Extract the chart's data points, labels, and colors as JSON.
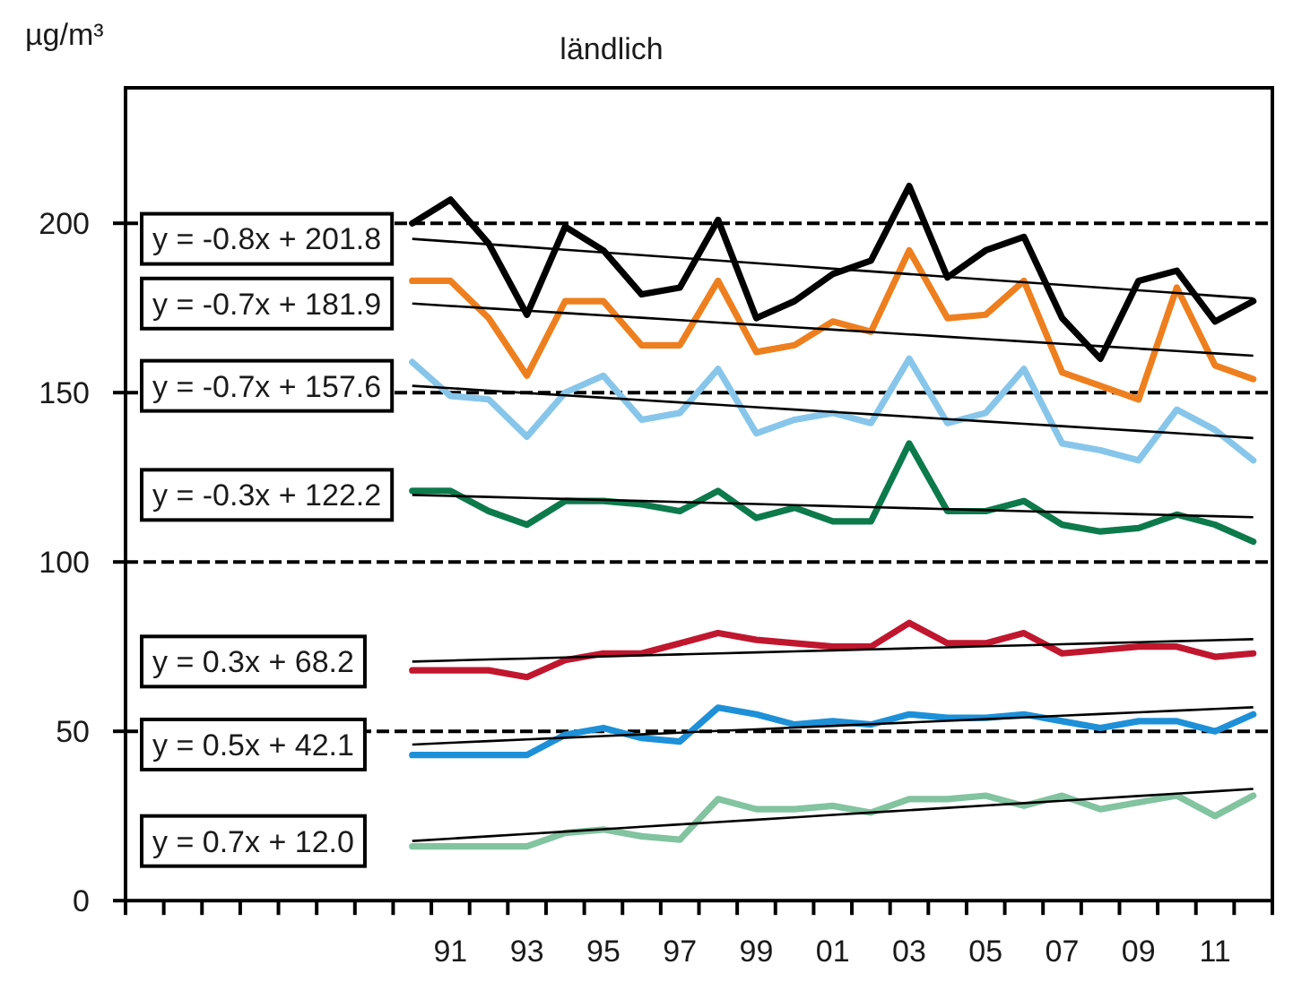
{
  "chart_data": {
    "type": "line",
    "title": "ländlich",
    "ylabel": "µg/m³",
    "categories": [
      null,
      null,
      null,
      null,
      null,
      null,
      null,
      null,
      "91",
      null,
      "93",
      null,
      "95",
      null,
      "97",
      null,
      "99",
      null,
      "01",
      null,
      "03",
      null,
      "05",
      null,
      "07",
      null,
      "09",
      null,
      "11",
      null
    ],
    "ylim": [
      0,
      240
    ],
    "yticks": [
      0,
      50,
      100,
      150,
      200
    ],
    "grid": "y",
    "series": [
      {
        "color": "#000000",
        "values": [
          null,
          null,
          null,
          null,
          null,
          null,
          null,
          200,
          207,
          194,
          173,
          199,
          192,
          179,
          181,
          201,
          172,
          177,
          185,
          189,
          211,
          184,
          192,
          196,
          172,
          160,
          183,
          186,
          171,
          177
        ]
      },
      {
        "color": "#ee7f1f",
        "values": [
          null,
          null,
          null,
          null,
          null,
          null,
          null,
          183,
          183,
          172,
          155,
          177,
          177,
          164,
          164,
          183,
          162,
          164,
          171,
          168,
          192,
          172,
          173,
          183,
          156,
          152,
          148,
          181,
          158,
          154
        ]
      },
      {
        "color": "#87c6ea",
        "values": [
          null,
          null,
          null,
          null,
          null,
          null,
          null,
          159,
          149,
          148,
          137,
          150,
          155,
          142,
          144,
          157,
          138,
          142,
          144,
          141,
          160,
          141,
          144,
          157,
          135,
          133,
          130,
          145,
          139,
          130
        ]
      },
      {
        "color": "#0d7a4c",
        "values": [
          null,
          null,
          null,
          null,
          null,
          null,
          null,
          121,
          121,
          115,
          111,
          118,
          118,
          117,
          115,
          121,
          113,
          116,
          112,
          112,
          135,
          115,
          115,
          118,
          111,
          109,
          110,
          114,
          111,
          106
        ]
      },
      {
        "color": "#c0172e",
        "values": [
          null,
          null,
          null,
          null,
          null,
          null,
          null,
          68,
          68,
          68,
          66,
          71,
          73,
          73,
          76,
          79,
          77,
          76,
          75,
          75,
          82,
          76,
          76,
          79,
          73,
          74,
          75,
          75,
          72,
          73
        ]
      },
      {
        "color": "#1d90d8",
        "values": [
          null,
          null,
          null,
          null,
          null,
          null,
          null,
          43,
          43,
          43,
          43,
          49,
          51,
          48,
          47,
          57,
          55,
          52,
          53,
          52,
          55,
          54,
          54,
          55,
          53,
          51,
          53,
          53,
          50,
          55
        ]
      },
      {
        "color": "#82c3a0",
        "values": [
          null,
          null,
          null,
          null,
          null,
          null,
          null,
          16,
          16,
          16,
          16,
          20,
          21,
          19,
          18,
          30,
          27,
          27,
          28,
          26,
          30,
          30,
          31,
          28,
          31,
          27,
          29,
          31,
          25,
          31
        ]
      },
      {
        "name": "y = -0.8x + 201.8",
        "color": "#000000",
        "values": [
          null,
          null,
          null,
          null,
          null,
          null,
          null,
          195.4,
          194.6,
          193.8,
          193.0,
          192.2,
          191.4,
          190.6,
          189.8,
          189.0,
          188.2,
          187.4,
          186.6,
          185.8,
          185.0,
          184.2,
          183.4,
          182.6,
          181.8,
          181.0,
          180.2,
          179.4,
          178.6,
          177.8
        ]
      },
      {
        "name": "y = -0.7x + 181.9",
        "color": "#000000",
        "values": [
          null,
          null,
          null,
          null,
          null,
          null,
          null,
          176.3,
          175.6,
          174.9,
          174.2,
          173.5,
          172.8,
          172.1,
          171.4,
          170.7,
          170.0,
          169.3,
          168.6,
          167.9,
          167.2,
          166.5,
          165.8,
          165.1,
          164.4,
          163.7,
          163.0,
          162.3,
          161.6,
          160.9
        ]
      },
      {
        "name": "y = -0.7x + 157.6",
        "color": "#000000",
        "values": [
          null,
          null,
          null,
          null,
          null,
          null,
          null,
          152.0,
          151.3,
          150.6,
          149.9,
          149.2,
          148.5,
          147.8,
          147.1,
          146.4,
          145.7,
          145.0,
          144.3,
          143.6,
          142.9,
          142.2,
          141.5,
          140.8,
          140.1,
          139.4,
          138.7,
          138.0,
          137.3,
          136.6
        ]
      },
      {
        "name": "y = -0.3x + 122.2",
        "color": "#000000",
        "values": [
          null,
          null,
          null,
          null,
          null,
          null,
          null,
          119.8,
          119.5,
          119.2,
          118.9,
          118.6,
          118.3,
          118.0,
          117.7,
          117.4,
          117.1,
          116.8,
          116.5,
          116.2,
          115.9,
          115.6,
          115.3,
          115.0,
          114.7,
          114.4,
          114.1,
          113.8,
          113.5,
          113.2
        ]
      },
      {
        "name": "y = 0.3x + 68.2",
        "color": "#000000",
        "values": [
          null,
          null,
          null,
          null,
          null,
          null,
          null,
          70.6,
          70.9,
          71.2,
          71.5,
          71.8,
          72.1,
          72.4,
          72.7,
          73.0,
          73.3,
          73.6,
          73.9,
          74.2,
          74.5,
          74.8,
          75.1,
          75.4,
          75.7,
          76.0,
          76.3,
          76.6,
          76.9,
          77.2
        ]
      },
      {
        "name": "y = 0.5x + 42.1",
        "color": "#000000",
        "values": [
          null,
          null,
          null,
          null,
          null,
          null,
          null,
          46.1,
          46.6,
          47.1,
          47.6,
          48.1,
          48.6,
          49.1,
          49.6,
          50.1,
          50.6,
          51.1,
          51.6,
          52.1,
          52.6,
          53.1,
          53.6,
          54.1,
          54.6,
          55.1,
          55.6,
          56.1,
          56.6,
          57.1
        ]
      },
      {
        "name": "y = 0.7x + 12.0",
        "color": "#000000",
        "values": [
          null,
          null,
          null,
          null,
          null,
          null,
          null,
          17.6,
          18.3,
          19.0,
          19.7,
          20.4,
          21.1,
          21.8,
          22.5,
          23.2,
          23.9,
          24.6,
          25.3,
          26.0,
          26.7,
          27.4,
          28.1,
          28.8,
          29.5,
          30.2,
          30.9,
          31.6,
          32.3,
          33.0
        ]
      }
    ]
  }
}
